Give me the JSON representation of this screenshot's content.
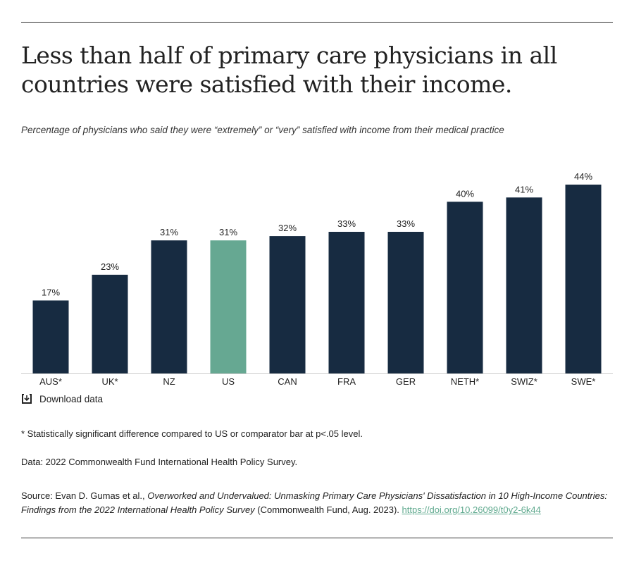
{
  "title": "Less than half of primary care physicians in all countries were satisfied with their income.",
  "subtitle": "Percentage of physicians who said they were “extremely” or “very” satisfied with income from their medical practice",
  "download_label": "Download data",
  "footnote": "* Statistically significant difference compared to US or comparator bar at p<.05 level.",
  "data_note": "Data: 2022 Commonwealth Fund International Health Policy Survey.",
  "source": {
    "prefix": "Source: Evan D. Gumas et al., ",
    "title_italic": "Overworked and Undervalued: Unmasking Primary Care Physicians' Dissatisfaction in 10 High-Income Countries: Findings from the 2022 International Health Policy Survey",
    "suffix": " (Commonwealth Fund, Aug. 2023). ",
    "link": "https://doi.org/10.26099/t0y2-6k44"
  },
  "colors": {
    "default_bar": "#172b41",
    "highlight_bar": "#66a892",
    "link": "#5fa98e"
  },
  "chart_data": {
    "type": "bar",
    "categories": [
      "AUS*",
      "UK*",
      "NZ",
      "US",
      "CAN",
      "FRA",
      "GER",
      "NETH*",
      "SWIZ*",
      "SWE*"
    ],
    "values": [
      17,
      23,
      31,
      31,
      32,
      33,
      33,
      40,
      41,
      44
    ],
    "labels": [
      "17%",
      "23%",
      "31%",
      "31%",
      "32%",
      "33%",
      "33%",
      "40%",
      "41%",
      "44%"
    ],
    "highlight": "US",
    "ylim": [
      0,
      44
    ],
    "grid": false
  }
}
